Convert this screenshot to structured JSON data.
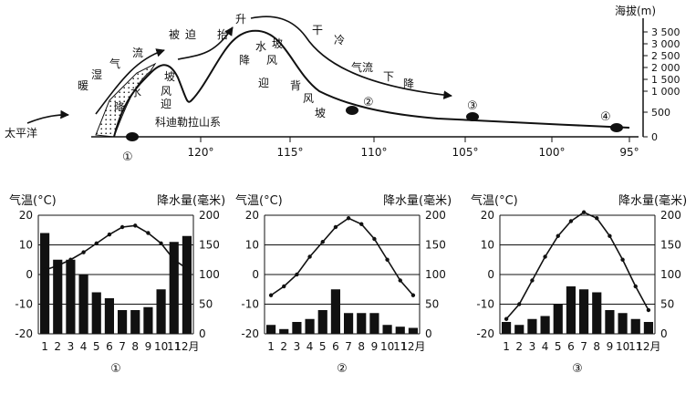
{
  "profile": {
    "labels": {
      "pacific": "太平洋",
      "warm_moist_flow": [
        "暖",
        "湿",
        "气",
        "流"
      ],
      "forced_lift": [
        "被",
        "迫",
        "抬",
        "升"
      ],
      "dry_cold": [
        "干",
        "冷"
      ],
      "airflow_descend": [
        "气流",
        "下",
        "降"
      ],
      "windward_rain": [
        "迎",
        "风",
        "坡"
      ],
      "leeward_slope": [
        "背",
        "风",
        "坡"
      ],
      "water_rain1": [
        "水",
        "降"
      ],
      "water_rain2": [
        "水",
        "降"
      ],
      "slope_wind": [
        "坡",
        "风"
      ],
      "mountain": "科迪勒拉山系",
      "leeward_far": [
        "迎"
      ]
    },
    "altitude_title": "海拔(m)",
    "altitude_ticks": [
      "3 500",
      "3 000",
      "2 500",
      "2 000",
      "1 500",
      "1 000",
      "500",
      "0"
    ],
    "longitudes": [
      "120°",
      "115°",
      "110°",
      "105°",
      "100°",
      "95°"
    ],
    "stations": [
      "①",
      "②",
      "③",
      "④"
    ]
  },
  "climate_charts": [
    {
      "id": "①",
      "temp_label": "气温(°C)",
      "precip_label": "降水量(毫米)",
      "temp_ticks": [
        "20",
        "10",
        "0",
        "-10",
        "-20"
      ],
      "precip_ticks": [
        "200",
        "150",
        "100",
        "50",
        "0"
      ],
      "month_labels": [
        "1",
        "2",
        "3",
        "4",
        "5",
        "6",
        "7",
        "8",
        "9",
        "10",
        "11",
        "12月"
      ],
      "precip": [
        170,
        125,
        125,
        100,
        70,
        60,
        40,
        40,
        45,
        75,
        155,
        165
      ],
      "temp": [
        1.5,
        3,
        5,
        7.5,
        10.5,
        13.5,
        16,
        16.5,
        14,
        10.5,
        5,
        2
      ]
    },
    {
      "id": "②",
      "temp_label": "气温(°C)",
      "precip_label": "降水量(毫米)",
      "temp_ticks": [
        "20",
        "10",
        "0",
        "-10",
        "-20"
      ],
      "precip_ticks": [
        "200",
        "150",
        "100",
        "50",
        "0"
      ],
      "month_labels": [
        "1",
        "2",
        "3",
        "4",
        "5",
        "6",
        "7",
        "8",
        "9",
        "10",
        "11",
        "12月"
      ],
      "precip": [
        15,
        8,
        20,
        25,
        40,
        75,
        35,
        35,
        35,
        15,
        12,
        10
      ],
      "temp": [
        -7,
        -4,
        0,
        6,
        11,
        16,
        19,
        17,
        12,
        5,
        -2,
        -7
      ]
    },
    {
      "id": "③",
      "temp_label": "气温(°C)",
      "precip_label": "降水量(毫米)",
      "temp_ticks": [
        "20",
        "10",
        "0",
        "-10",
        "-20"
      ],
      "precip_ticks": [
        "200",
        "150",
        "100",
        "50",
        "0"
      ],
      "month_labels": [
        "1",
        "2",
        "3",
        "4",
        "5",
        "6",
        "7",
        "8",
        "9",
        "10",
        "11",
        "12月"
      ],
      "precip": [
        20,
        15,
        25,
        30,
        50,
        80,
        75,
        70,
        40,
        35,
        25,
        20
      ],
      "temp": [
        -15,
        -10,
        -2,
        6,
        13,
        18,
        21,
        19,
        13,
        5,
        -4,
        -12
      ]
    }
  ]
}
